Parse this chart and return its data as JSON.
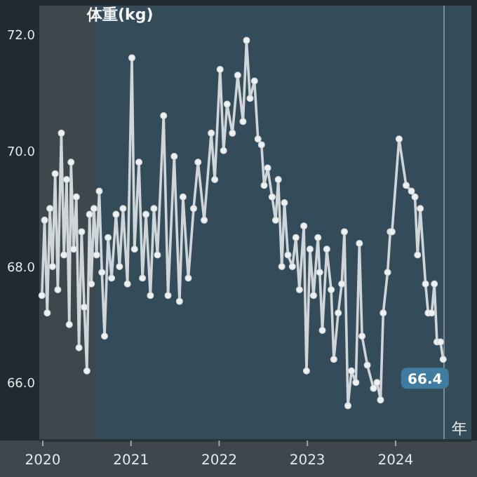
{
  "chart_data": {
    "type": "line",
    "ylabel": "体重(kg)",
    "xlabel": "年",
    "x": [
      2019.99,
      2020.02,
      2020.05,
      2020.08,
      2020.11,
      2020.14,
      2020.17,
      2020.21,
      2020.24,
      2020.27,
      2020.3,
      2020.32,
      2020.35,
      2020.38,
      2020.41,
      2020.44,
      2020.47,
      2020.5,
      2020.53,
      2020.55,
      2020.58,
      2020.61,
      2020.64,
      2020.67,
      2020.7,
      2020.74,
      2020.78,
      2020.83,
      2020.87,
      2020.91,
      2020.96,
      2021.01,
      2021.04,
      2021.09,
      2021.13,
      2021.17,
      2021.22,
      2021.26,
      2021.3,
      2021.37,
      2021.42,
      2021.49,
      2021.55,
      2021.59,
      2021.65,
      2021.71,
      2021.76,
      2021.83,
      2021.91,
      2021.95,
      2022.01,
      2022.05,
      2022.09,
      2022.15,
      2022.21,
      2022.27,
      2022.31,
      2022.35,
      2022.4,
      2022.44,
      2022.48,
      2022.51,
      2022.55,
      2022.6,
      2022.64,
      2022.67,
      2022.71,
      2022.74,
      2022.78,
      2022.83,
      2022.87,
      2022.91,
      2022.96,
      2022.99,
      2023.03,
      2023.07,
      2023.12,
      2023.14,
      2023.17,
      2023.22,
      2023.27,
      2023.3,
      2023.35,
      2023.39,
      2023.42,
      2023.46,
      2023.5,
      2023.55,
      2023.59,
      2023.62,
      2023.68,
      2023.75,
      2023.79,
      2023.83,
      2023.86,
      2023.91,
      2023.94,
      2023.96,
      2024.04,
      2024.12,
      2024.18,
      2024.22,
      2024.25,
      2024.28,
      2024.34,
      2024.37,
      2024.41,
      2024.44,
      2024.47,
      2024.51,
      2024.54
    ],
    "series": [
      {
        "color": "#cfd5d8",
        "values": [
          67.5,
          68.8,
          67.2,
          69.0,
          68.0,
          69.6,
          67.6,
          70.3,
          68.2,
          69.5,
          67.0,
          69.8,
          68.3,
          69.2,
          66.6,
          68.6,
          67.3,
          66.2,
          68.9,
          67.7,
          69.0,
          68.2,
          69.3,
          67.9,
          66.8,
          68.5,
          67.8,
          68.9,
          68.0,
          69.0,
          67.7,
          71.6,
          68.3,
          69.8,
          67.8,
          68.9,
          67.5,
          69.0,
          68.2,
          70.6,
          67.5,
          69.9,
          67.4,
          69.2,
          67.8,
          69.0,
          69.8,
          68.8,
          70.3,
          69.5,
          71.4,
          70.0,
          70.8,
          70.3,
          71.3,
          70.5,
          71.9,
          70.9,
          71.2,
          70.2,
          70.1,
          69.4,
          69.7,
          69.2,
          68.8,
          69.5,
          68.0,
          69.1,
          68.2,
          68.0,
          68.5,
          67.6,
          68.7,
          66.2,
          68.3,
          67.5,
          68.5,
          67.9,
          66.9,
          68.3,
          67.6,
          66.4,
          67.2,
          67.7,
          68.6,
          65.6,
          66.2,
          66.0,
          68.4,
          66.8,
          66.3,
          65.9,
          66.0,
          65.7,
          67.2,
          67.9,
          68.6,
          68.6,
          70.2,
          69.4,
          69.3,
          69.2,
          68.2,
          69.0,
          67.7,
          67.2,
          67.2,
          67.7,
          66.7,
          66.7,
          66.4
        ]
      }
    ],
    "marker": "circle",
    "xlim": [
      2019.96,
      2024.86
    ],
    "xticks": [
      2020,
      2021,
      2022,
      2023,
      2024
    ],
    "ylim": [
      65,
      72.5
    ],
    "yticks": [
      {
        "value": 66,
        "label": "66.0"
      },
      {
        "value": 68,
        "label": "68.0"
      },
      {
        "value": 70,
        "label": "70.0"
      },
      {
        "value": 72,
        "label": "72.0"
      }
    ],
    "ref_lines": [
      {
        "axis": "x",
        "value": 2024.55,
        "color": "#7d8c94"
      }
    ],
    "bands": [
      {
        "axis": "x",
        "from": 2019.96,
        "to": 2020.61,
        "color": "#3e474c"
      }
    ],
    "annotations": [
      {
        "text": "66.4",
        "x": 2024.54,
        "y": 66.4
      }
    ],
    "grid": false
  }
}
